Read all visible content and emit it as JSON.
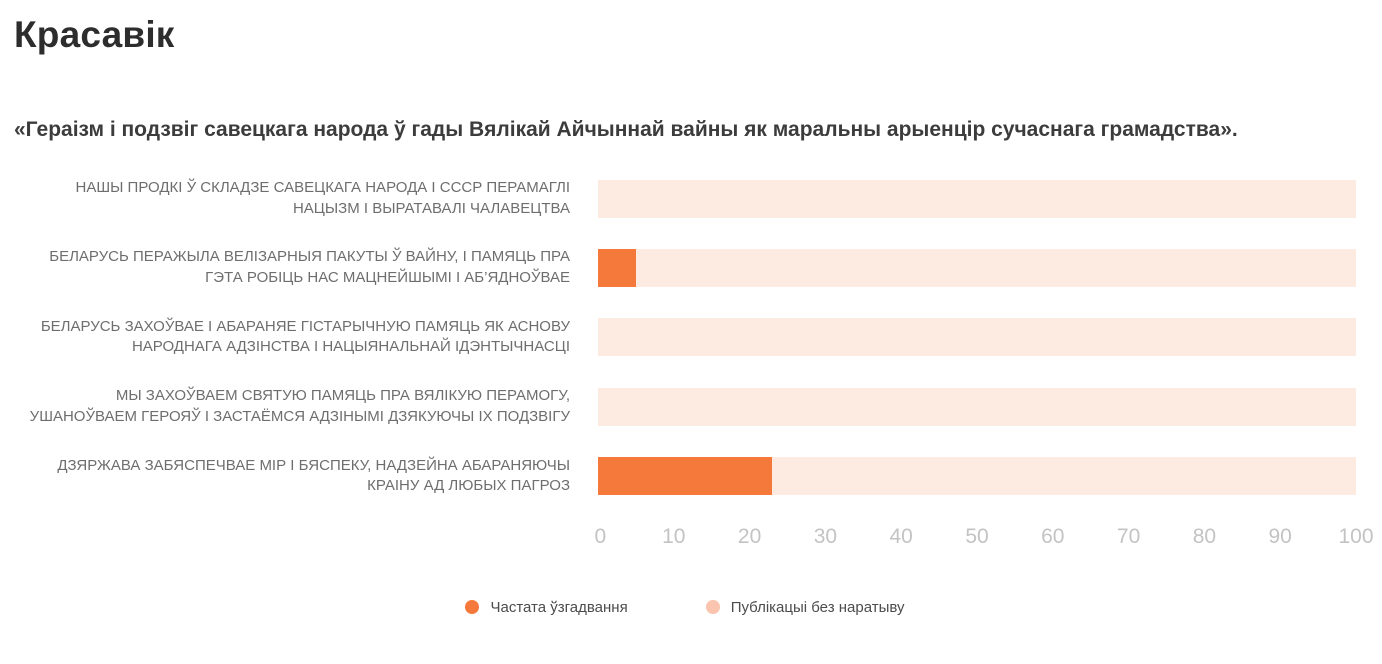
{
  "page": {
    "title": "Красавік",
    "subtitle": "«Гераізм і подзвіг савецкага народа ў гады Вялікай Айчыннай вайны як маральны арыенцір сучаснага грамадства»."
  },
  "chart_data": {
    "type": "bar",
    "orientation": "horizontal",
    "stacked": true,
    "title": "Красавік",
    "subtitle": "«Гераізм і подзвіг савецкага народа ў гады Вялікай Айчыннай вайны як маральны арыенцір сучаснага грамадства».",
    "categories": [
      "НАШЫ ПРОДКІ Ў СКЛАДЗЕ САВЕЦКАГА НАРОДА І СССР ПЕРАМАГЛІ НАЦЫЗМ І ВЫРАТАВАЛІ ЧАЛАВЕЦТВА",
      "БЕЛАРУСЬ ПЕРАЖЫЛА ВЕЛІЗАРНЫЯ ПАКУТЫ Ў ВАЙНУ, І ПАМЯЦЬ ПРА ГЭТА РОБІЦЬ НАС МАЦНЕЙШЫМІ І АБ’ЯДНОЎВАЕ",
      "БЕЛАРУСЬ ЗАХОЎВАЕ І АБАРАНЯЕ ГІСТАРЫЧНУЮ ПАМЯЦЬ ЯК АСНОВУ НАРОДНАГА АДЗІНСТВА І НАЦЫЯНАЛЬНАЙ ІДЭНТЫЧНАСЦІ",
      "МЫ ЗАХОЎВАЕМ СВЯТУЮ ПАМЯЦЬ ПРА ВЯЛІКУЮ ПЕРАМОГУ, УШАНОЎВАЕМ ГЕРОЯЎ І ЗАСТАЁМСЯ АДЗІНЫМІ ДЗЯКУЮЧЫ ІХ ПОДЗВІГУ",
      "ДЗЯРЖАВА ЗАБЯСПЕЧВАЕ МІР І БЯСПЕКУ, НАДЗЕЙНА АБАРАНЯЮЧЫ КРАІНУ АД ЛЮБЫХ ПАГРОЗ"
    ],
    "series": [
      {
        "name": "Частата ўзгадвання",
        "color": "#f5793b",
        "legend_color": "#f5793b",
        "values": [
          0,
          5,
          0,
          0,
          23
        ]
      },
      {
        "name": "Публікацыі без наратыву",
        "color": "#fdebe2",
        "legend_color": "#fac4ae",
        "values": [
          100,
          95,
          100,
          100,
          77
        ]
      }
    ],
    "xticks": [
      0,
      10,
      20,
      30,
      40,
      50,
      60,
      70,
      80,
      90,
      100
    ],
    "xlim": [
      0,
      100
    ],
    "grid": false,
    "legend_position": "bottom"
  }
}
